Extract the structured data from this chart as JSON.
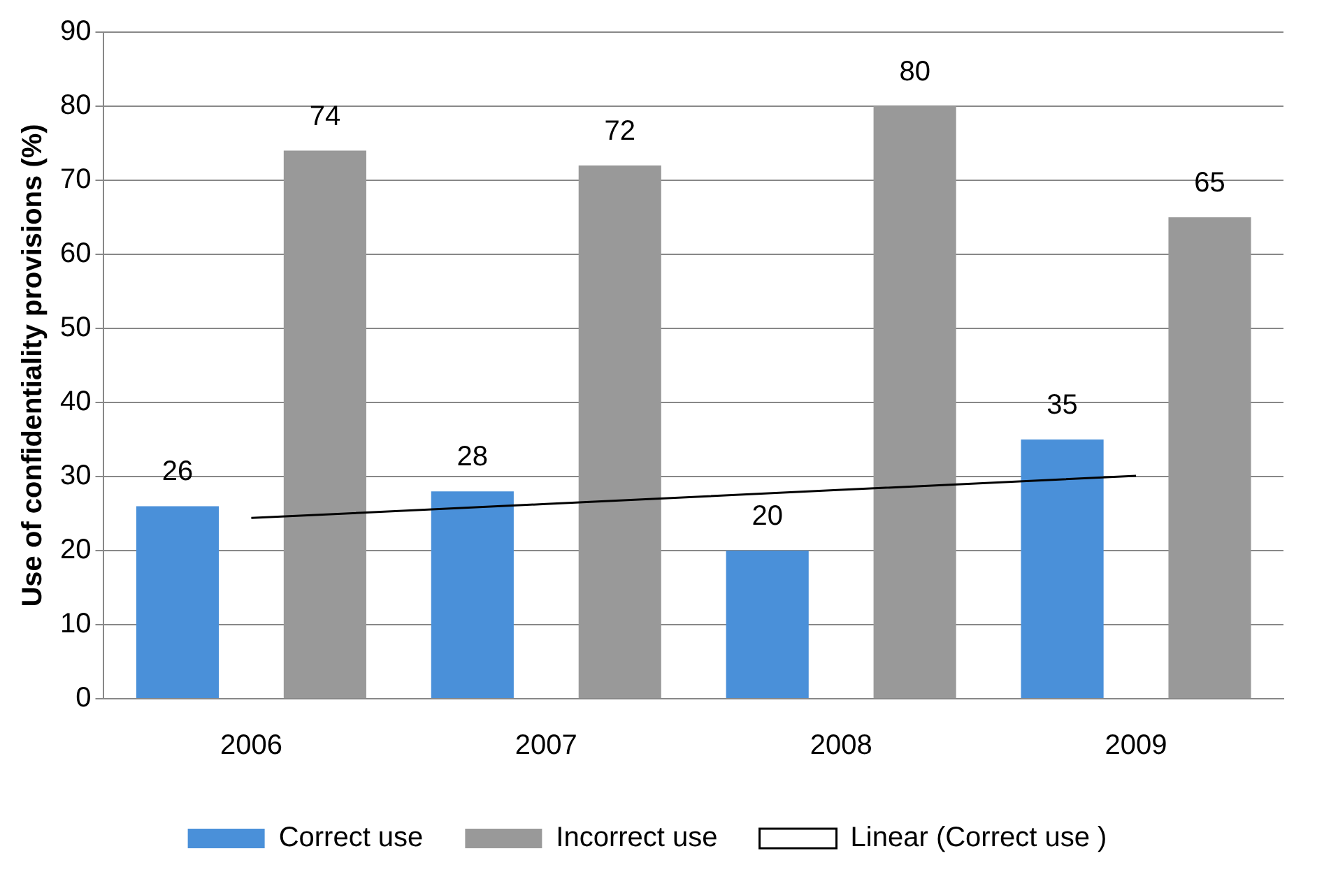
{
  "chart_data": {
    "type": "bar",
    "ylabel": "Use of confidentiality provisions (%)",
    "categories": [
      "2006",
      "2007",
      "2008",
      "2009"
    ],
    "ylim": [
      0,
      90
    ],
    "yticks": [
      0,
      10,
      20,
      30,
      40,
      50,
      60,
      70,
      80,
      90
    ],
    "grid": "y",
    "legend": "bottom",
    "series": [
      {
        "name": "Correct use",
        "color": "#4a90d9",
        "values": [
          26,
          28,
          20,
          35
        ],
        "value_labels": [
          "26",
          "28",
          "20",
          "35"
        ]
      },
      {
        "name": "Incorrect use",
        "color": "#999999",
        "values": [
          74,
          72,
          80,
          65
        ],
        "value_labels": [
          "74",
          "72",
          "80",
          "65"
        ]
      },
      {
        "name": "Linear (Correct use )",
        "type": "line",
        "color": "#000000",
        "values": [
          24.4,
          26.3,
          28.2,
          30.1
        ],
        "marker": "none",
        "line_style": "solid"
      }
    ]
  }
}
